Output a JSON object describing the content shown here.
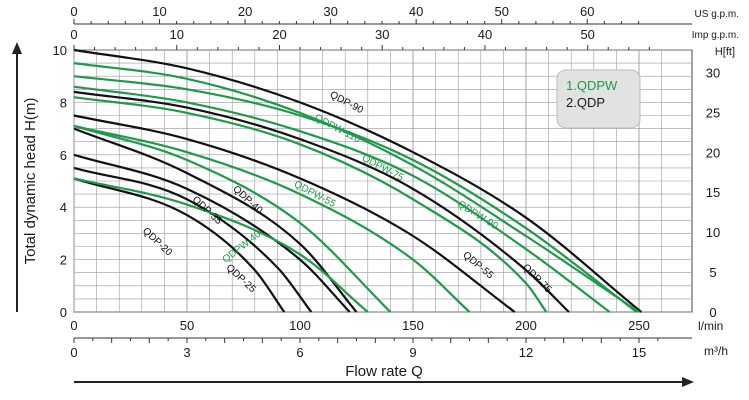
{
  "chart_data": {
    "type": "line",
    "title": "",
    "xlabel": "Flow rate Q",
    "ylabel": "Total dynamic head H(m)",
    "xlim": [
      0,
      260
    ],
    "ylim": [
      0,
      10
    ],
    "grid": true,
    "legend_position": "top-right",
    "axes": {
      "bottom_main": {
        "unit": "l/min",
        "ticks": [
          0,
          50,
          100,
          150,
          200,
          250
        ]
      },
      "bottom_secondary": {
        "unit": "m³/h",
        "ticks": [
          0,
          3,
          6,
          9,
          12,
          15
        ]
      },
      "top_main": {
        "unit": "US g.p.m.",
        "ticks": [
          0,
          10,
          20,
          30,
          40,
          50,
          60
        ]
      },
      "top_secondary": {
        "unit": "Imp g.p.m.",
        "ticks": [
          0,
          10,
          20,
          30,
          40,
          50
        ]
      },
      "left": {
        "ticks": [
          0,
          2,
          4,
          6,
          8,
          10
        ]
      },
      "right": {
        "unit": "H[ft]",
        "ticks": [
          0,
          5,
          10,
          15,
          20,
          25,
          30
        ]
      }
    },
    "legend": [
      {
        "text": "1.QDPW",
        "color": "#1f9a49"
      },
      {
        "text": "2.QDP",
        "color": "#1a1a1a"
      }
    ],
    "colors": {
      "QDPW": "#1f9a49",
      "QDP": "#111111",
      "grid": "#9a9a9a",
      "legend_bg": "#e2e2e2"
    },
    "series": [
      {
        "name": "QDP-90",
        "family": "QDP",
        "x": [
          0,
          50,
          100,
          150,
          200,
          251
        ],
        "y": [
          10.0,
          9.3,
          8.0,
          6.1,
          3.6,
          0.0
        ]
      },
      {
        "name": "QDPW-110",
        "family": "QDPW",
        "x": [
          0,
          50,
          100,
          150,
          200,
          249
        ],
        "y": [
          9.0,
          8.5,
          7.5,
          5.8,
          3.2,
          0.0
        ]
      },
      {
        "name": "QDPW-90",
        "family": "QDPW",
        "x": [
          0,
          50,
          100,
          150,
          200,
          250
        ],
        "y": [
          9.5,
          8.9,
          7.6,
          5.6,
          2.9,
          0.0
        ]
      },
      {
        "name": "QDPW-75",
        "family": "QDPW",
        "x": [
          0,
          50,
          100,
          150,
          200,
          237
        ],
        "y": [
          8.6,
          8.0,
          6.9,
          5.2,
          2.4,
          0.0
        ]
      },
      {
        "name": "QDP-75",
        "family": "QDP",
        "x": [
          0,
          50,
          100,
          150,
          200,
          219
        ],
        "y": [
          8.4,
          7.8,
          6.6,
          4.7,
          1.6,
          0.0
        ]
      },
      {
        "name": "QDPW-55",
        "family": "QDPW",
        "x": [
          0,
          50,
          100,
          150,
          200,
          209
        ],
        "y": [
          8.2,
          7.6,
          6.4,
          4.3,
          1.1,
          0.0
        ]
      },
      {
        "name": "QDP-55",
        "family": "QDP",
        "x": [
          0,
          50,
          100,
          150,
          195
        ],
        "y": [
          7.5,
          6.6,
          5.1,
          2.9,
          0.0
        ]
      },
      {
        "name": "QDPW-40",
        "family": "QDPW",
        "x": [
          0,
          50,
          100,
          150,
          175
        ],
        "y": [
          7.1,
          6.1,
          4.5,
          2.0,
          0.0
        ]
      },
      {
        "name": "QDP-40",
        "family": "QDP",
        "x": [
          0,
          50,
          100,
          125
        ],
        "y": [
          7.0,
          5.3,
          2.6,
          0.0
        ]
      },
      {
        "name": "QDP-35",
        "family": "QDP",
        "x": [
          0,
          50,
          100,
          122
        ],
        "y": [
          6.0,
          4.7,
          2.0,
          0.0
        ]
      },
      {
        "name": "QDP-25",
        "family": "QDP",
        "x": [
          0,
          50,
          90,
          105
        ],
        "y": [
          5.5,
          4.3,
          1.7,
          0.0
        ]
      },
      {
        "name": "QDP-20",
        "family": "QDP",
        "x": [
          0,
          50,
          80,
          93
        ],
        "y": [
          5.1,
          3.7,
          1.6,
          0.0
        ]
      },
      {
        "name": "",
        "family": "QDPW",
        "x": [
          0,
          50,
          100,
          140
        ],
        "y": [
          7.1,
          5.8,
          3.4,
          0.0
        ]
      },
      {
        "name": "",
        "family": "QDPW",
        "x": [
          0,
          50,
          100,
          130
        ],
        "y": [
          5.1,
          4.1,
          2.2,
          0.0
        ]
      }
    ]
  }
}
